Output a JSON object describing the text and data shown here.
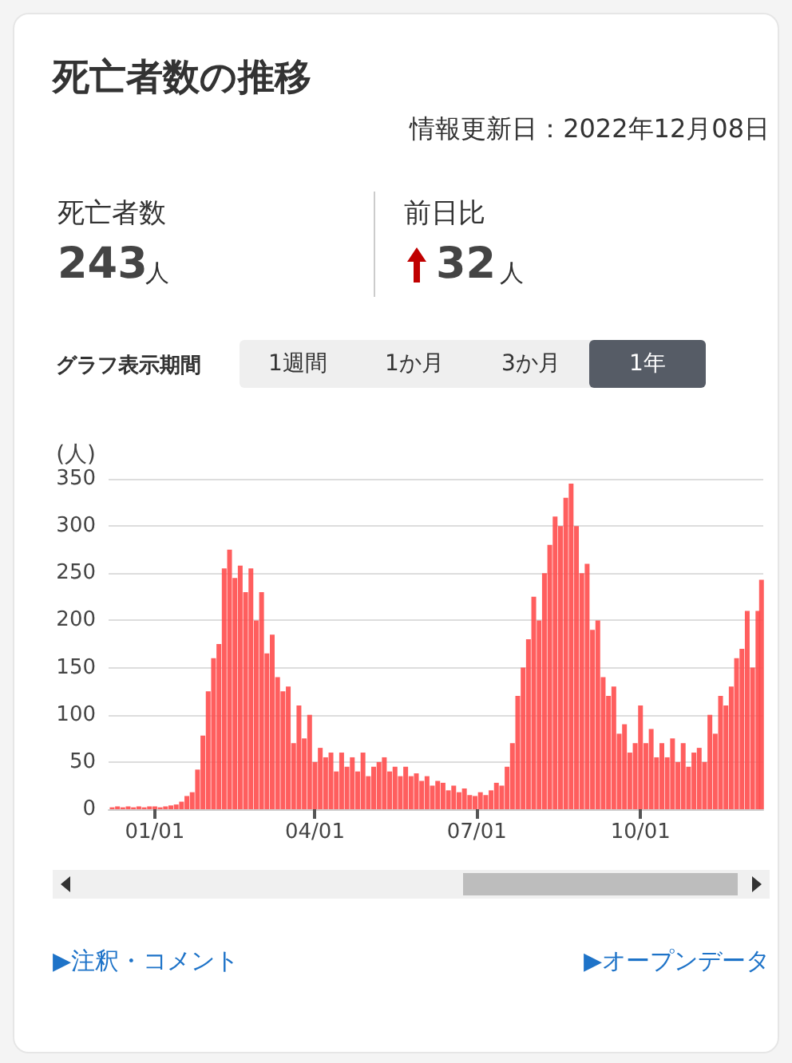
{
  "chart_data": {
    "type": "bar",
    "title": "死亡者数の推移",
    "ylabel": "(人)",
    "annotations": [
      "情報更新日：2022年12月08日",
      "死亡者数",
      "243",
      "人",
      "前日比",
      "32",
      "人",
      "グラフ表示期間",
      "1週間",
      "1か月",
      "3か月",
      "1年",
      "▶注釈・コメント",
      "▶オープンデータ"
    ],
    "x": [
      "2021-12-08",
      "2021-12-11",
      "2021-12-14",
      "2021-12-17",
      "2021-12-20",
      "2021-12-23",
      "2021-12-26",
      "2021-12-29",
      "2022-01-01",
      "2022-01-04",
      "2022-01-07",
      "2022-01-10",
      "2022-01-13",
      "2022-01-16",
      "2022-01-19",
      "2022-01-22",
      "2022-01-25",
      "2022-01-28",
      "2022-01-31",
      "2022-02-03",
      "2022-02-06",
      "2022-02-09",
      "2022-02-12",
      "2022-02-15",
      "2022-02-18",
      "2022-02-21",
      "2022-02-24",
      "2022-02-27",
      "2022-03-02",
      "2022-03-05",
      "2022-03-08",
      "2022-03-11",
      "2022-03-14",
      "2022-03-17",
      "2022-03-20",
      "2022-03-23",
      "2022-03-26",
      "2022-03-29",
      "2022-04-01",
      "2022-04-04",
      "2022-04-07",
      "2022-04-10",
      "2022-04-13",
      "2022-04-16",
      "2022-04-19",
      "2022-04-22",
      "2022-04-25",
      "2022-04-28",
      "2022-05-01",
      "2022-05-04",
      "2022-05-07",
      "2022-05-10",
      "2022-05-13",
      "2022-05-16",
      "2022-05-19",
      "2022-05-22",
      "2022-05-25",
      "2022-05-28",
      "2022-05-31",
      "2022-06-03",
      "2022-06-06",
      "2022-06-09",
      "2022-06-12",
      "2022-06-15",
      "2022-06-18",
      "2022-06-21",
      "2022-06-24",
      "2022-06-27",
      "2022-06-30",
      "2022-07-03",
      "2022-07-06",
      "2022-07-09",
      "2022-07-12",
      "2022-07-15",
      "2022-07-18",
      "2022-07-21",
      "2022-07-24",
      "2022-07-27",
      "2022-07-30",
      "2022-08-02",
      "2022-08-05",
      "2022-08-08",
      "2022-08-11",
      "2022-08-14",
      "2022-08-17",
      "2022-08-20",
      "2022-08-23",
      "2022-08-26",
      "2022-08-29",
      "2022-09-01",
      "2022-09-04",
      "2022-09-07",
      "2022-09-10",
      "2022-09-13",
      "2022-09-16",
      "2022-09-19",
      "2022-09-22",
      "2022-09-25",
      "2022-09-28",
      "2022-10-01",
      "2022-10-04",
      "2022-10-07",
      "2022-10-10",
      "2022-10-13",
      "2022-10-16",
      "2022-10-19",
      "2022-10-22",
      "2022-10-25",
      "2022-10-28",
      "2022-10-31",
      "2022-11-03",
      "2022-11-06",
      "2022-11-09",
      "2022-11-12",
      "2022-11-15",
      "2022-11-18",
      "2022-11-21",
      "2022-11-24",
      "2022-11-27",
      "2022-11-30",
      "2022-12-03",
      "2022-12-06",
      "2022-12-08"
    ],
    "series": [
      {
        "color": "#ff4d4d",
        "values": [
          2,
          3,
          2,
          3,
          2,
          3,
          2,
          3,
          3,
          2,
          3,
          4,
          5,
          8,
          14,
          18,
          42,
          78,
          125,
          160,
          175,
          255,
          275,
          245,
          258,
          230,
          255,
          200,
          230,
          165,
          185,
          140,
          125,
          130,
          70,
          110,
          75,
          100,
          50,
          65,
          55,
          60,
          40,
          60,
          45,
          55,
          40,
          60,
          35,
          45,
          50,
          55,
          40,
          45,
          35,
          45,
          35,
          38,
          30,
          35,
          25,
          30,
          28,
          20,
          25,
          18,
          22,
          15,
          14,
          18,
          15,
          20,
          28,
          25,
          45,
          70,
          120,
          150,
          180,
          225,
          200,
          250,
          280,
          310,
          300,
          330,
          345,
          300,
          250,
          260,
          190,
          200,
          140,
          120,
          130,
          80,
          90,
          60,
          70,
          110,
          70,
          85,
          55,
          70,
          55,
          75,
          50,
          70,
          45,
          60,
          65,
          50,
          100,
          80,
          120,
          110,
          130,
          160,
          170,
          210,
          150,
          210,
          243
        ]
      }
    ],
    "xlim": [
      "2021-12-06",
      "2022-12-09"
    ],
    "xticks": [
      {
        "value": "2022-01-01",
        "label": "01/01"
      },
      {
        "value": "2022-04-01",
        "label": "04/01"
      },
      {
        "value": "2022-07-01",
        "label": "07/01"
      },
      {
        "value": "2022-10-01",
        "label": "10/01"
      }
    ],
    "ylim": [
      0,
      350
    ],
    "yticks": [
      0,
      50,
      100,
      150,
      200,
      250,
      300,
      350
    ],
    "grid": "y"
  }
}
